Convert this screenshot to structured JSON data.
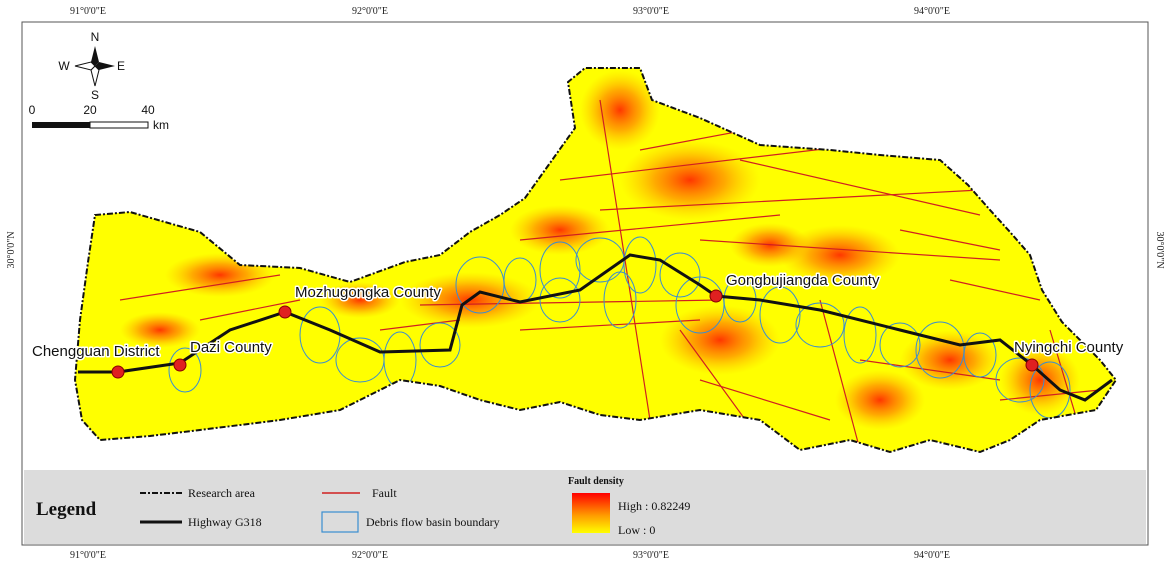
{
  "map": {
    "grid_labels": {
      "top": [
        "91°0'0\"E",
        "92°0'0\"E",
        "93°0'0\"E",
        "94°0'0\"E"
      ],
      "bottom": [
        "91°0'0\"E",
        "92°0'0\"E",
        "93°0'0\"E",
        "94°0'0\"E"
      ],
      "left": "30°0'0\"N",
      "right": "30°0'0\"N"
    },
    "compass": {
      "n": "N",
      "s": "S",
      "w": "W",
      "e": "E"
    },
    "scale_bar": {
      "labels": [
        "0",
        "20",
        "40"
      ],
      "unit": "km"
    },
    "places": [
      "Chengguan District",
      "Dazi County",
      "Mozhugongka County",
      "Gongbujiangda County",
      "Nyingchi County"
    ],
    "legend": {
      "title": "Legend",
      "research_area": "Research area",
      "highway": "Highway G318",
      "fault": "Fault",
      "basin": "Debris flow basin boundary",
      "density_title": "Fault density",
      "high": "High : 0.82249",
      "low": "Low : 0"
    }
  }
}
